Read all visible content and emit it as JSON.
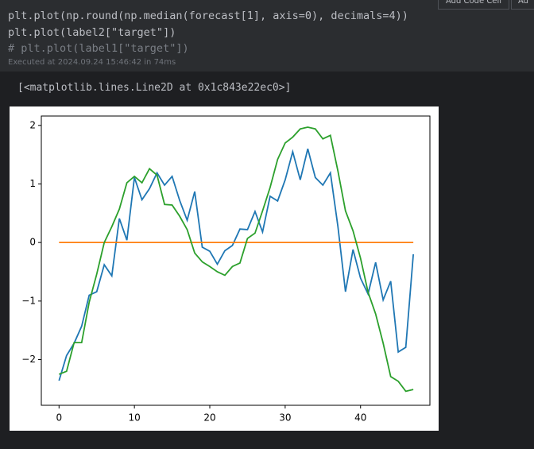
{
  "toolbar": {
    "buttons": [
      "Add Code Cell",
      "Ad"
    ]
  },
  "cell": {
    "code": [
      "plt.plot(np.round(np.median(forecast[1], axis=0), decimals=4))",
      "plt.plot(label2[\"target\"])",
      "# plt.plot(label1[\"target\"])"
    ],
    "executed": "Executed at 2024.09.24 15:46:42 in 74ms",
    "output": "[<matplotlib.lines.Line2D at 0x1c843e22ec0>]"
  },
  "chart_data": {
    "type": "line",
    "x": [
      0,
      1,
      2,
      3,
      4,
      5,
      6,
      7,
      8,
      9,
      10,
      11,
      12,
      13,
      14,
      15,
      16,
      17,
      18,
      19,
      20,
      21,
      22,
      23,
      24,
      25,
      26,
      27,
      28,
      29,
      30,
      31,
      32,
      33,
      34,
      35,
      36,
      37,
      38,
      39,
      40,
      41,
      42,
      43,
      44,
      45,
      46,
      47
    ],
    "series": [
      {
        "color": "#1f77b4",
        "values": [
          -2.36,
          -1.93,
          -1.72,
          -1.43,
          -0.9,
          -0.84,
          -0.38,
          -0.57,
          0.41,
          0.04,
          1.11,
          0.73,
          0.92,
          1.19,
          0.98,
          1.13,
          0.72,
          0.38,
          0.87,
          -0.08,
          -0.15,
          -0.37,
          -0.14,
          -0.05,
          0.23,
          0.22,
          0.53,
          0.18,
          0.79,
          0.71,
          1.07,
          1.55,
          1.07,
          1.6,
          1.11,
          0.98,
          1.19,
          0.27,
          -0.84,
          -0.12,
          -0.61,
          -0.88,
          -0.34,
          -0.98,
          -0.66,
          -1.87,
          -1.79,
          -0.2
        ]
      },
      {
        "color": "#ff7f0e",
        "values": [
          0,
          0,
          0,
          0,
          0,
          0,
          0,
          0,
          0,
          0,
          0,
          0,
          0,
          0,
          0,
          0,
          0,
          0,
          0,
          0,
          0,
          0,
          0,
          0,
          0,
          0,
          0,
          0,
          0,
          0,
          0,
          0,
          0,
          0,
          0,
          0,
          0,
          0,
          0,
          0,
          0,
          0,
          0,
          0,
          0,
          0,
          0,
          0
        ]
      },
      {
        "color": "#2ca02c",
        "values": [
          -2.25,
          -2.2,
          -1.71,
          -1.71,
          -1.02,
          -0.54,
          0,
          0.27,
          0.57,
          1.02,
          1.13,
          1.02,
          1.26,
          1.15,
          0.65,
          0.64,
          0.45,
          0.22,
          -0.18,
          -0.33,
          -0.41,
          -0.5,
          -0.56,
          -0.41,
          -0.35,
          0.07,
          0.16,
          0.54,
          0.94,
          1.42,
          1.7,
          1.8,
          1.94,
          1.97,
          1.94,
          1.77,
          1.83,
          1.22,
          0.54,
          0.2,
          -0.27,
          -0.85,
          -1.22,
          -1.72,
          -2.29,
          -2.37,
          -2.54,
          -2.51
        ]
      }
    ],
    "xlim": [
      -2.35,
      49.2
    ],
    "ylim": [
      -2.78,
      2.16
    ],
    "xticks": [
      0,
      10,
      20,
      30,
      40
    ],
    "yticks": [
      {
        "value": -2,
        "label": "−2"
      },
      {
        "value": -1,
        "label": "−1"
      },
      0,
      1,
      2
    ]
  }
}
